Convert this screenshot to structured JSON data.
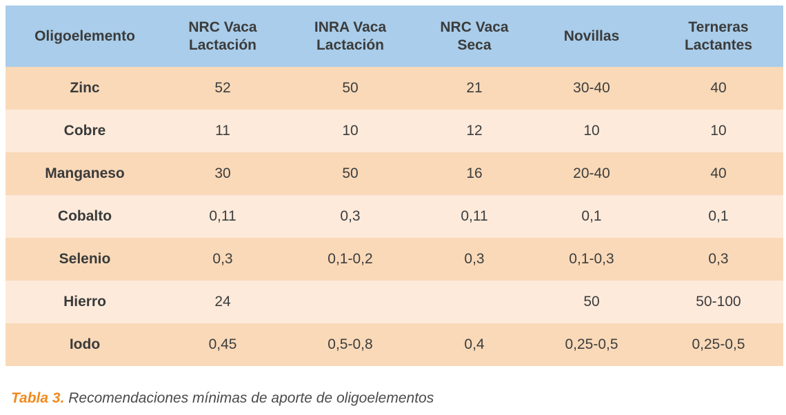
{
  "table": {
    "headers": [
      [
        "Oligoelemento"
      ],
      [
        "NRC Vaca",
        "Lactación"
      ],
      [
        "INRA Vaca",
        "Lactación"
      ],
      [
        "NRC Vaca",
        "Seca"
      ],
      [
        "Novillas"
      ],
      [
        "Terneras",
        "Lactantes"
      ]
    ],
    "rows": [
      [
        "Zinc",
        "52",
        "50",
        "21",
        "30-40",
        "40"
      ],
      [
        "Cobre",
        "11",
        "10",
        "12",
        "10",
        "10"
      ],
      [
        "Manganeso",
        "30",
        "50",
        "16",
        "20-40",
        "40"
      ],
      [
        "Cobalto",
        "0,11",
        "0,3",
        "0,11",
        "0,1",
        "0,1"
      ],
      [
        "Selenio",
        "0,3",
        "0,1-0,2",
        "0,3",
        "0,1-0,3",
        "0,3"
      ],
      [
        "Hierro",
        "24",
        "",
        "",
        "50",
        "50-100"
      ],
      [
        "Iodo",
        "0,45",
        "0,5-0,8",
        "0,4",
        "0,25-0,5",
        "0,25-0,5"
      ]
    ]
  },
  "caption": {
    "label": "Tabla 3.",
    "text": " Recomendaciones mínimas de aporte de oligoelementos"
  },
  "colors": {
    "header_bg": "#a9cdea",
    "row_odd_bg": "#f9d9b8",
    "row_even_bg": "#fdeadb",
    "caption_label": "#f08a1f"
  }
}
